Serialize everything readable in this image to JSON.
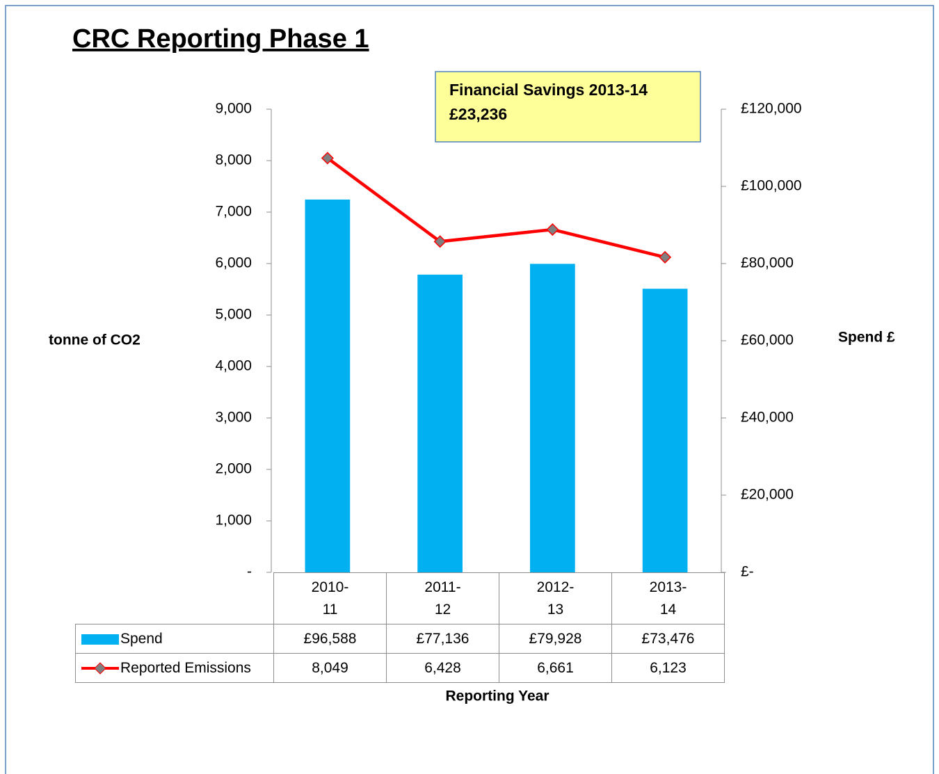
{
  "chart_data": {
    "type": "combo",
    "title": "CRC Reporting Phase 1",
    "annotation": [
      "Financial Savings 2013-14",
      "£23,236"
    ],
    "ylabel": "tonne of CO2",
    "y2label": "Spend £",
    "xlabel": "Reporting Year",
    "categories": [
      "2010-11",
      "2011-12",
      "2012-13",
      "2013-14"
    ],
    "series": [
      {
        "name": "Spend",
        "type": "bar",
        "axis": "y2",
        "color": "#00b0f0",
        "values": [
          96588,
          77136,
          79928,
          73476
        ],
        "value_labels": [
          "£96,588",
          "£77,136",
          "£79,928",
          "£73,476"
        ]
      },
      {
        "name": "Reported Emissions",
        "type": "line",
        "axis": "y",
        "color": "#ff0000",
        "marker_color": "#7f7f7f",
        "values": [
          8049,
          6428,
          6661,
          6123
        ],
        "value_labels": [
          "8,049",
          "6,428",
          "6,661",
          "6,123"
        ]
      }
    ],
    "ylim": [
      0,
      9000
    ],
    "yticks": [
      {
        "value": 0,
        "label": "-"
      },
      {
        "value": 1000,
        "label": "1,000"
      },
      {
        "value": 2000,
        "label": "2,000"
      },
      {
        "value": 3000,
        "label": "3,000"
      },
      {
        "value": 4000,
        "label": "4,000"
      },
      {
        "value": 5000,
        "label": "5,000"
      },
      {
        "value": 6000,
        "label": "6,000"
      },
      {
        "value": 7000,
        "label": "7,000"
      },
      {
        "value": 8000,
        "label": "8,000"
      },
      {
        "value": 9000,
        "label": "9,000"
      }
    ],
    "y2lim": [
      0,
      120000
    ],
    "y2ticks": [
      {
        "value": 0,
        "label": "£-"
      },
      {
        "value": 20000,
        "label": "£20,000"
      },
      {
        "value": 40000,
        "label": "£40,000"
      },
      {
        "value": 60000,
        "label": "£60,000"
      },
      {
        "value": 80000,
        "label": "£80,000"
      },
      {
        "value": 100000,
        "label": "£100,000"
      },
      {
        "value": 120000,
        "label": "£120,000"
      }
    ],
    "grid": false,
    "data_table": true
  }
}
